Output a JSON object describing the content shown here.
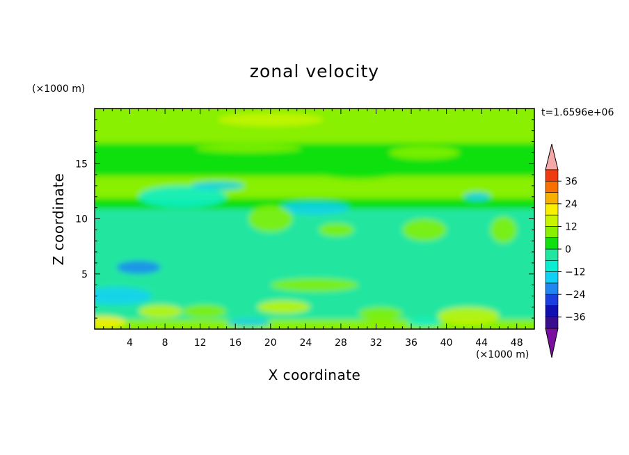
{
  "chart_data": {
    "type": "heatmap",
    "title": "zonal velocity",
    "xlabel": "X coordinate",
    "ylabel": "Z coordinate",
    "x_unit": "(×1000 m)",
    "y_unit": "(×1000 m)",
    "annotation": "t=1.6596e+06",
    "xlim": [
      0,
      50
    ],
    "ylim": [
      0,
      20
    ],
    "x_ticks": [
      4,
      8,
      12,
      16,
      20,
      24,
      28,
      32,
      36,
      40,
      44,
      48
    ],
    "y_ticks": [
      5,
      10,
      15
    ],
    "colorbar": {
      "levels": [
        -42,
        -36,
        -30,
        -24,
        -18,
        -12,
        -6,
        0,
        6,
        12,
        18,
        24,
        30,
        36,
        42
      ],
      "tick_labels": [
        "36",
        "24",
        "12",
        "0",
        "−12",
        "−24",
        "−36"
      ],
      "tick_values": [
        36,
        24,
        12,
        0,
        -12,
        -24,
        -36
      ],
      "colors": [
        "#7a0fa0",
        "#3a0d8c",
        "#1010b0",
        "#1a3ee0",
        "#1f86f2",
        "#10d0f5",
        "#08eed2",
        "#20e6a0",
        "#10e010",
        "#88f000",
        "#c8f400",
        "#f8f000",
        "#f8b000",
        "#f87000",
        "#f03a10",
        "#e01818",
        "#f4a8a8"
      ],
      "extend": "both"
    },
    "field_bands": [
      {
        "z_range": [
          0,
          1
        ],
        "typical_value": 6
      },
      {
        "z_range": [
          1,
          5
        ],
        "typical_value": -3
      },
      {
        "z_range": [
          5,
          8
        ],
        "typical_value": -6
      },
      {
        "z_range": [
          8,
          11
        ],
        "typical_value": -6
      },
      {
        "z_range": [
          11,
          12
        ],
        "typical_value": 4
      },
      {
        "z_range": [
          12,
          14
        ],
        "typical_value": 8
      },
      {
        "z_range": [
          14,
          17
        ],
        "typical_value": 3
      },
      {
        "z_range": [
          17,
          20
        ],
        "typical_value": 10
      }
    ],
    "grid": false,
    "legend": "colorbar right"
  }
}
